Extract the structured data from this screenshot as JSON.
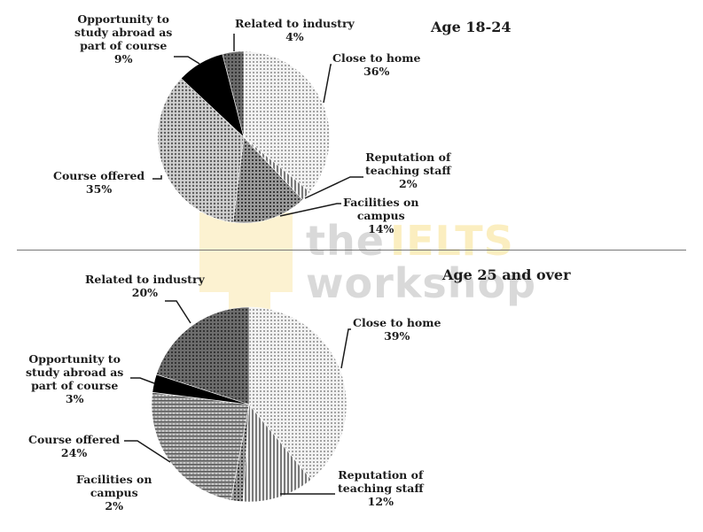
{
  "chart_data": [
    {
      "type": "pie",
      "title": "Age 18-24",
      "categories": [
        "Close to home",
        "Reputation of teaching staff",
        "Facilities on campus",
        "Course offered",
        "Opportunity to study abroad as part of course",
        "Related to industry"
      ],
      "values": [
        36,
        2,
        14,
        35,
        9,
        4
      ],
      "unit": "%",
      "start_angle": "12 o'clock, clockwise"
    },
    {
      "type": "pie",
      "title": "Age 25 and over",
      "categories": [
        "Close to home",
        "Reputation of teaching staff",
        "Facilities on campus",
        "Course offered",
        "Opportunity to study abroad as part of course",
        "Related to industry"
      ],
      "values": [
        39,
        12,
        2,
        24,
        3,
        20
      ],
      "unit": "%",
      "start_angle": "12 o'clock, clockwise"
    }
  ],
  "charts": {
    "top": {
      "title": "Age 18-24",
      "labels": {
        "industry": {
          "name": "Related to industry",
          "value": "4%"
        },
        "home": {
          "name": "Close to home",
          "value": "36%"
        },
        "reputation": {
          "line1": "Reputation of",
          "line2": "teaching staff",
          "value": "2%"
        },
        "facilities": {
          "line1": "Facilities on",
          "line2": "campus",
          "value": "14%"
        },
        "course": {
          "name": "Course offered",
          "value": "35%"
        },
        "abroad": {
          "line1": "Opportunity to",
          "line2": "study abroad as",
          "line3": "part of course",
          "value": "9%"
        }
      }
    },
    "bottom": {
      "title": "Age 25 and over",
      "labels": {
        "industry": {
          "name": "Related to industry",
          "value": "20%"
        },
        "home": {
          "name": "Close to home",
          "value": "39%"
        },
        "reputation": {
          "line1": "Reputation of",
          "line2": "teaching staff",
          "value": "12%"
        },
        "facilities": {
          "line1": "Facilities on",
          "line2": "campus",
          "value": "2%"
        },
        "course": {
          "name": "Course offered",
          "value": "24%"
        },
        "abroad": {
          "line1": "Opportunity to",
          "line2": "study abroad as",
          "line3": "part of course",
          "value": "3%"
        }
      }
    }
  },
  "watermark": {
    "word1": "the",
    "word2": "IELTS",
    "word3": "workshop"
  },
  "colors": {
    "watermark_gray": "#dcdcdc",
    "watermark_gold": "#fbeec0",
    "divider": "#777777",
    "black_slice": "#000000"
  }
}
